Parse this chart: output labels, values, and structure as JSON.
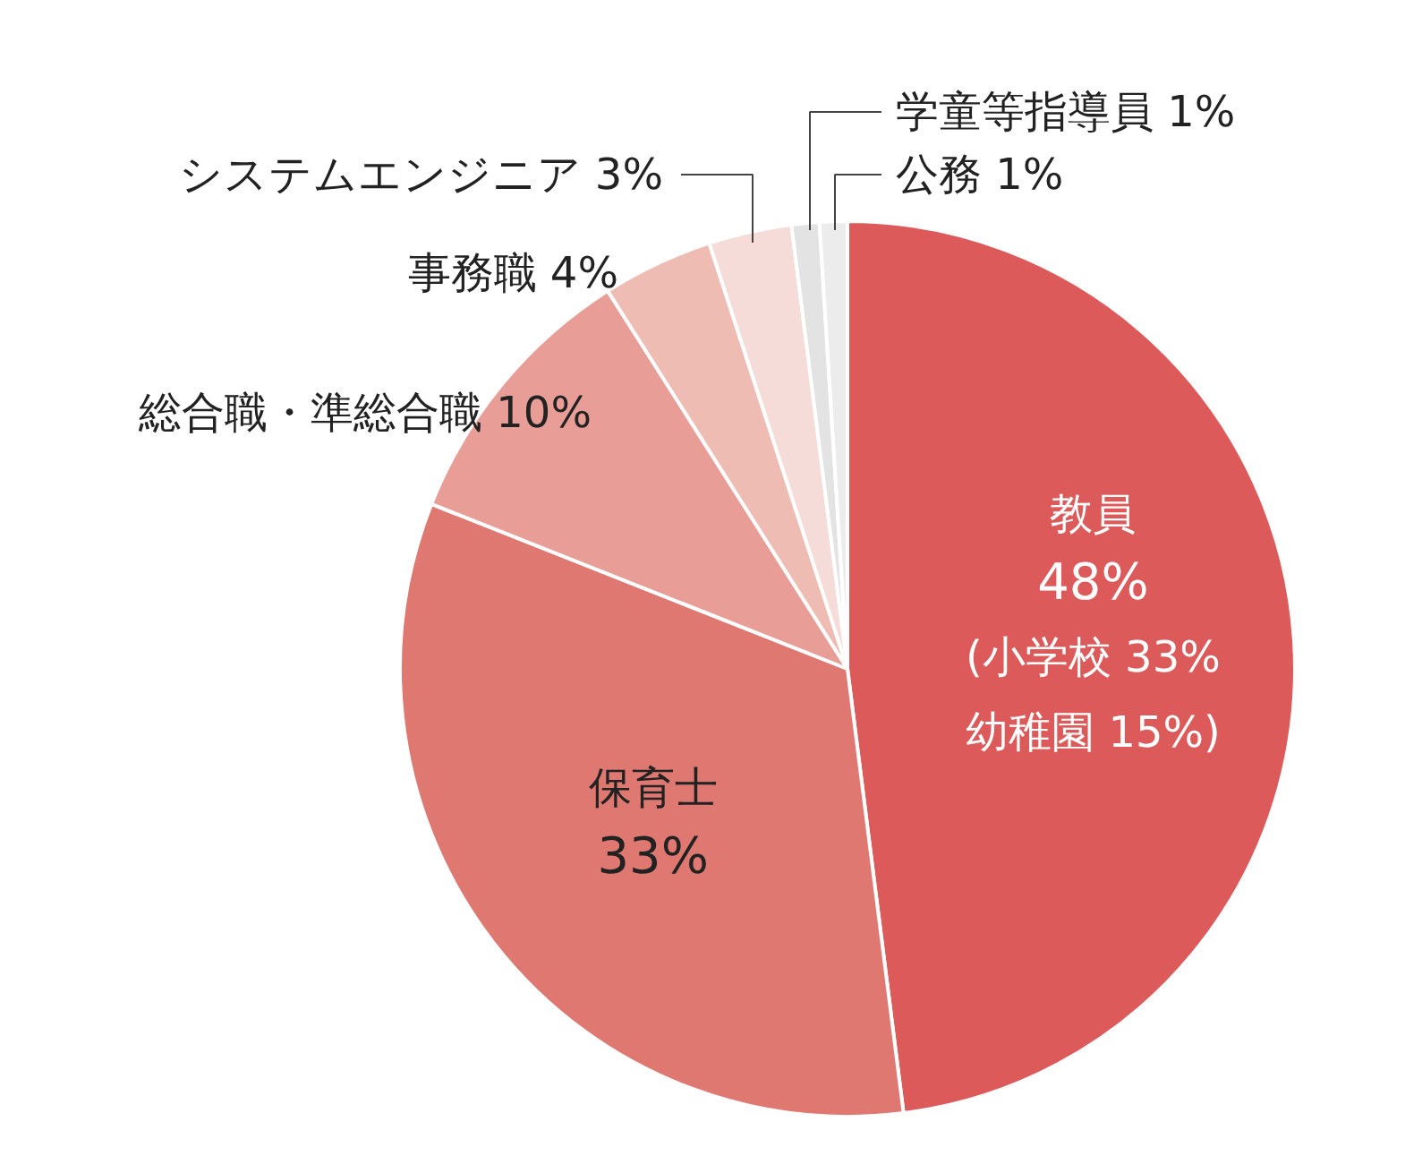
{
  "chart_data": {
    "type": "pie",
    "categories": [
      "教員",
      "保育士",
      "総合職・準総合職",
      "事務職",
      "システムエンジニア",
      "学童等指導員",
      "公務"
    ],
    "values": [
      48,
      33,
      10,
      4,
      3,
      1,
      1
    ],
    "value_labels": [
      "48%",
      "33%",
      "10%",
      "4%",
      "3%",
      "1%",
      "1%"
    ],
    "colors": [
      "#dc5a5a",
      "#e07872",
      "#e89e96",
      "#efbcb4",
      "#f5dcd8",
      "#e3e3e3",
      "#ececec"
    ],
    "annotations": [
      "(小学校 33%",
      "幼稚園 15%)"
    ]
  }
}
